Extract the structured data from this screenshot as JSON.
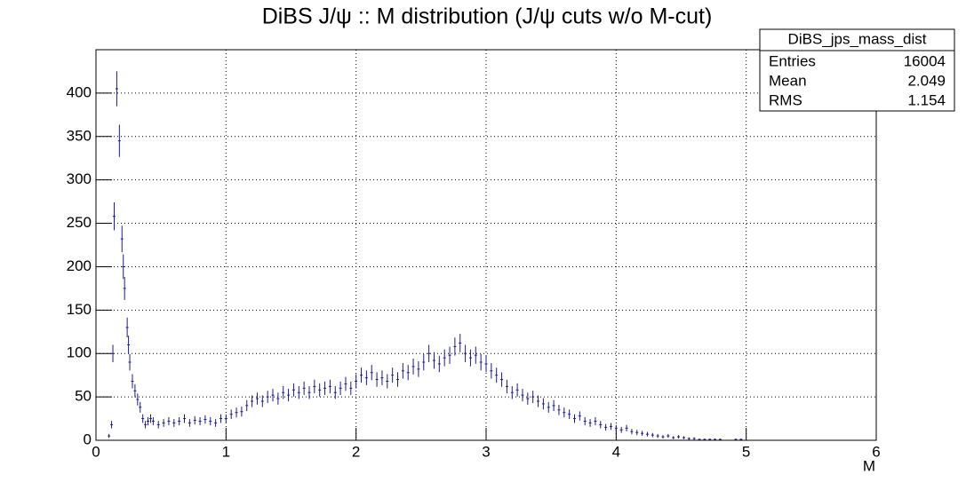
{
  "chart_data": {
    "type": "errorbar",
    "title": "DiBS J/ψ :: M distribution (J/ψ cuts w/o M-cut)",
    "x_label": "M",
    "color": "#1c1c8c",
    "xlim": [
      0,
      6
    ],
    "xticks": [
      0,
      1,
      2,
      3,
      4,
      5,
      6
    ],
    "ylim": [
      0,
      450
    ],
    "yticks": [
      0,
      50,
      100,
      150,
      200,
      250,
      300,
      350,
      400
    ],
    "grid": true,
    "x": [
      0.1,
      0.12,
      0.13,
      0.14,
      0.16,
      0.18,
      0.2,
      0.21,
      0.22,
      0.24,
      0.25,
      0.26,
      0.28,
      0.3,
      0.32,
      0.34,
      0.36,
      0.38,
      0.4,
      0.42,
      0.44,
      0.48,
      0.52,
      0.56,
      0.6,
      0.64,
      0.68,
      0.72,
      0.76,
      0.8,
      0.84,
      0.88,
      0.92,
      0.96,
      1.0,
      1.04,
      1.08,
      1.12,
      1.16,
      1.2,
      1.24,
      1.28,
      1.32,
      1.36,
      1.4,
      1.44,
      1.48,
      1.52,
      1.56,
      1.6,
      1.64,
      1.68,
      1.72,
      1.76,
      1.8,
      1.84,
      1.88,
      1.92,
      1.96,
      2.0,
      2.04,
      2.08,
      2.12,
      2.16,
      2.2,
      2.24,
      2.28,
      2.32,
      2.36,
      2.4,
      2.44,
      2.48,
      2.52,
      2.56,
      2.6,
      2.64,
      2.68,
      2.72,
      2.76,
      2.8,
      2.84,
      2.88,
      2.92,
      2.96,
      3.0,
      3.04,
      3.08,
      3.12,
      3.16,
      3.2,
      3.24,
      3.28,
      3.32,
      3.36,
      3.4,
      3.44,
      3.48,
      3.52,
      3.56,
      3.6,
      3.64,
      3.68,
      3.72,
      3.76,
      3.8,
      3.84,
      3.88,
      3.92,
      3.96,
      4.0,
      4.04,
      4.08,
      4.12,
      4.16,
      4.2,
      4.24,
      4.28,
      4.32,
      4.36,
      4.4,
      4.44,
      4.48,
      4.52,
      4.56,
      4.6,
      4.64,
      4.68,
      4.72,
      4.76,
      4.8,
      4.92,
      4.96
    ],
    "values": [
      5,
      18,
      100,
      258,
      405,
      345,
      232,
      200,
      175,
      130,
      110,
      90,
      68,
      57,
      47,
      38,
      25,
      18,
      22,
      25,
      22,
      18,
      20,
      22,
      20,
      22,
      25,
      20,
      23,
      22,
      24,
      22,
      20,
      25,
      25,
      30,
      32,
      33,
      40,
      45,
      48,
      45,
      50,
      52,
      48,
      55,
      52,
      58,
      55,
      60,
      55,
      62,
      58,
      60,
      62,
      55,
      60,
      65,
      60,
      68,
      75,
      72,
      78,
      70,
      72,
      68,
      75,
      70,
      80,
      78,
      85,
      82,
      90,
      100,
      92,
      88,
      95,
      98,
      108,
      112,
      100,
      95,
      98,
      90,
      88,
      80,
      75,
      70,
      62,
      55,
      58,
      52,
      48,
      50,
      45,
      42,
      38,
      40,
      35,
      32,
      30,
      25,
      28,
      22,
      20,
      22,
      18,
      15,
      16,
      14,
      12,
      14,
      10,
      9,
      8,
      7,
      6,
      5,
      4,
      5,
      3,
      4,
      3,
      2,
      2,
      1,
      1,
      1,
      1,
      1,
      1,
      1
    ],
    "stats": {
      "title": "DiBS_jps_mass_dist",
      "rows": [
        {
          "name": "Entries",
          "value": 16004
        },
        {
          "name": "Mean",
          "value": 2.049
        },
        {
          "name": "RMS",
          "value": 1.154
        }
      ]
    }
  }
}
